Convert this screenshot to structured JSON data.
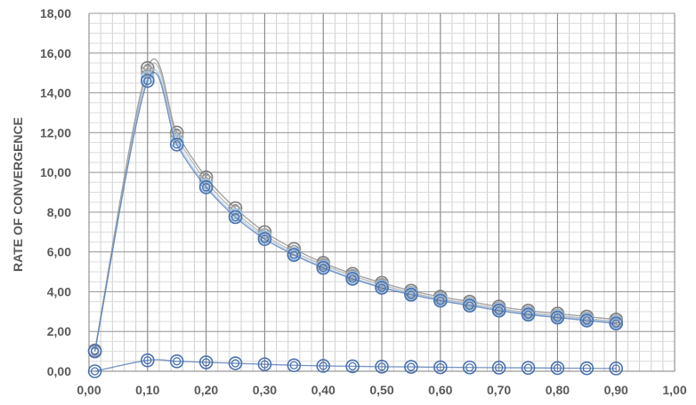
{
  "chart_data": {
    "type": "line",
    "title": "",
    "xlabel": "",
    "ylabel": "RATE OF CONVERGENCE",
    "xlim": [
      0,
      1.0
    ],
    "ylim": [
      0,
      18
    ],
    "x_ticks": [
      "0,00",
      "0,10",
      "0,20",
      "0,30",
      "0,40",
      "0,50",
      "0,60",
      "0,70",
      "0,80",
      "0,90",
      "1,00"
    ],
    "y_ticks": [
      "0,00",
      "2,00",
      "4,00",
      "6,00",
      "8,00",
      "10,00",
      "12,00",
      "14,00",
      "16,00",
      "18,00"
    ],
    "x_tick_values": [
      0,
      0.1,
      0.2,
      0.3,
      0.4,
      0.5,
      0.6,
      0.7,
      0.8,
      0.9,
      1.0
    ],
    "y_tick_values": [
      0,
      2,
      4,
      6,
      8,
      10,
      12,
      14,
      16,
      18
    ],
    "grid": true,
    "x": [
      0.01,
      0.1,
      0.15,
      0.2,
      0.25,
      0.3,
      0.35,
      0.4,
      0.45,
      0.5,
      0.55,
      0.6,
      0.65,
      0.7,
      0.75,
      0.8,
      0.85,
      0.9
    ],
    "series": [
      {
        "color": "#7f7f7f",
        "values": [
          1.05,
          15.25,
          12.0,
          9.75,
          8.2,
          7.0,
          6.15,
          5.45,
          4.9,
          4.45,
          4.05,
          3.75,
          3.5,
          3.25,
          3.05,
          2.9,
          2.75,
          2.6
        ]
      },
      {
        "color": "#a5a5a5",
        "values": [
          1.0,
          15.05,
          11.8,
          9.55,
          8.0,
          6.85,
          6.0,
          5.35,
          4.8,
          4.35,
          3.95,
          3.65,
          3.4,
          3.15,
          2.95,
          2.8,
          2.65,
          2.5
        ]
      },
      {
        "color": "#9dc3e6",
        "values": [
          1.0,
          14.75,
          11.55,
          9.35,
          7.85,
          6.75,
          5.9,
          5.25,
          4.7,
          4.25,
          3.9,
          3.6,
          3.35,
          3.1,
          2.9,
          2.75,
          2.6,
          2.45
        ]
      },
      {
        "color": "#4a72b0",
        "values": [
          1.0,
          14.6,
          11.4,
          9.25,
          7.75,
          6.65,
          5.85,
          5.2,
          4.65,
          4.2,
          3.85,
          3.55,
          3.3,
          3.05,
          2.85,
          2.7,
          2.55,
          2.4
        ]
      },
      {
        "color": "#4a72b0",
        "values": [
          0.0,
          0.55,
          0.5,
          0.45,
          0.4,
          0.35,
          0.3,
          0.27,
          0.25,
          0.23,
          0.22,
          0.2,
          0.19,
          0.18,
          0.17,
          0.16,
          0.15,
          0.14
        ]
      }
    ]
  }
}
